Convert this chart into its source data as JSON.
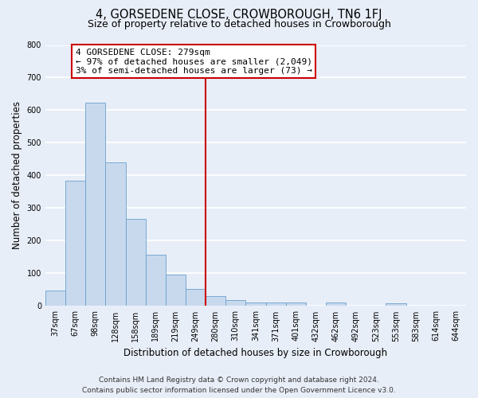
{
  "title": "4, GORSEDENE CLOSE, CROWBOROUGH, TN6 1FJ",
  "subtitle": "Size of property relative to detached houses in Crowborough",
  "xlabel": "Distribution of detached houses by size in Crowborough",
  "ylabel": "Number of detached properties",
  "bar_labels": [
    "37sqm",
    "67sqm",
    "98sqm",
    "128sqm",
    "158sqm",
    "189sqm",
    "219sqm",
    "249sqm",
    "280sqm",
    "310sqm",
    "341sqm",
    "371sqm",
    "401sqm",
    "432sqm",
    "462sqm",
    "492sqm",
    "523sqm",
    "553sqm",
    "583sqm",
    "614sqm",
    "644sqm"
  ],
  "bar_values": [
    47,
    385,
    622,
    440,
    267,
    157,
    95,
    52,
    30,
    18,
    10,
    10,
    12,
    0,
    10,
    0,
    0,
    8,
    0,
    0,
    0
  ],
  "bar_color": "#c8d9ee",
  "bar_edge_color": "#6aa0cc",
  "highlight_x_label": "280sqm",
  "highlight_color": "#cc0000",
  "ylim": [
    0,
    800
  ],
  "yticks": [
    0,
    100,
    200,
    300,
    400,
    500,
    600,
    700,
    800
  ],
  "annotation_title": "4 GORSEDENE CLOSE: 279sqm",
  "annotation_line1": "← 97% of detached houses are smaller (2,049)",
  "annotation_line2": "3% of semi-detached houses are larger (73) →",
  "annotation_box_color": "#ffffff",
  "annotation_box_edge": "#cc0000",
  "footer_line1": "Contains HM Land Registry data © Crown copyright and database right 2024.",
  "footer_line2": "Contains public sector information licensed under the Open Government Licence v3.0.",
  "background_color": "#e8eef8",
  "plot_bg_color": "#e8eef8",
  "grid_color": "#ffffff",
  "title_fontsize": 10.5,
  "subtitle_fontsize": 9,
  "xlabel_fontsize": 8.5,
  "ylabel_fontsize": 8.5,
  "tick_fontsize": 7,
  "footer_fontsize": 6.5,
  "ann_fontsize": 8
}
